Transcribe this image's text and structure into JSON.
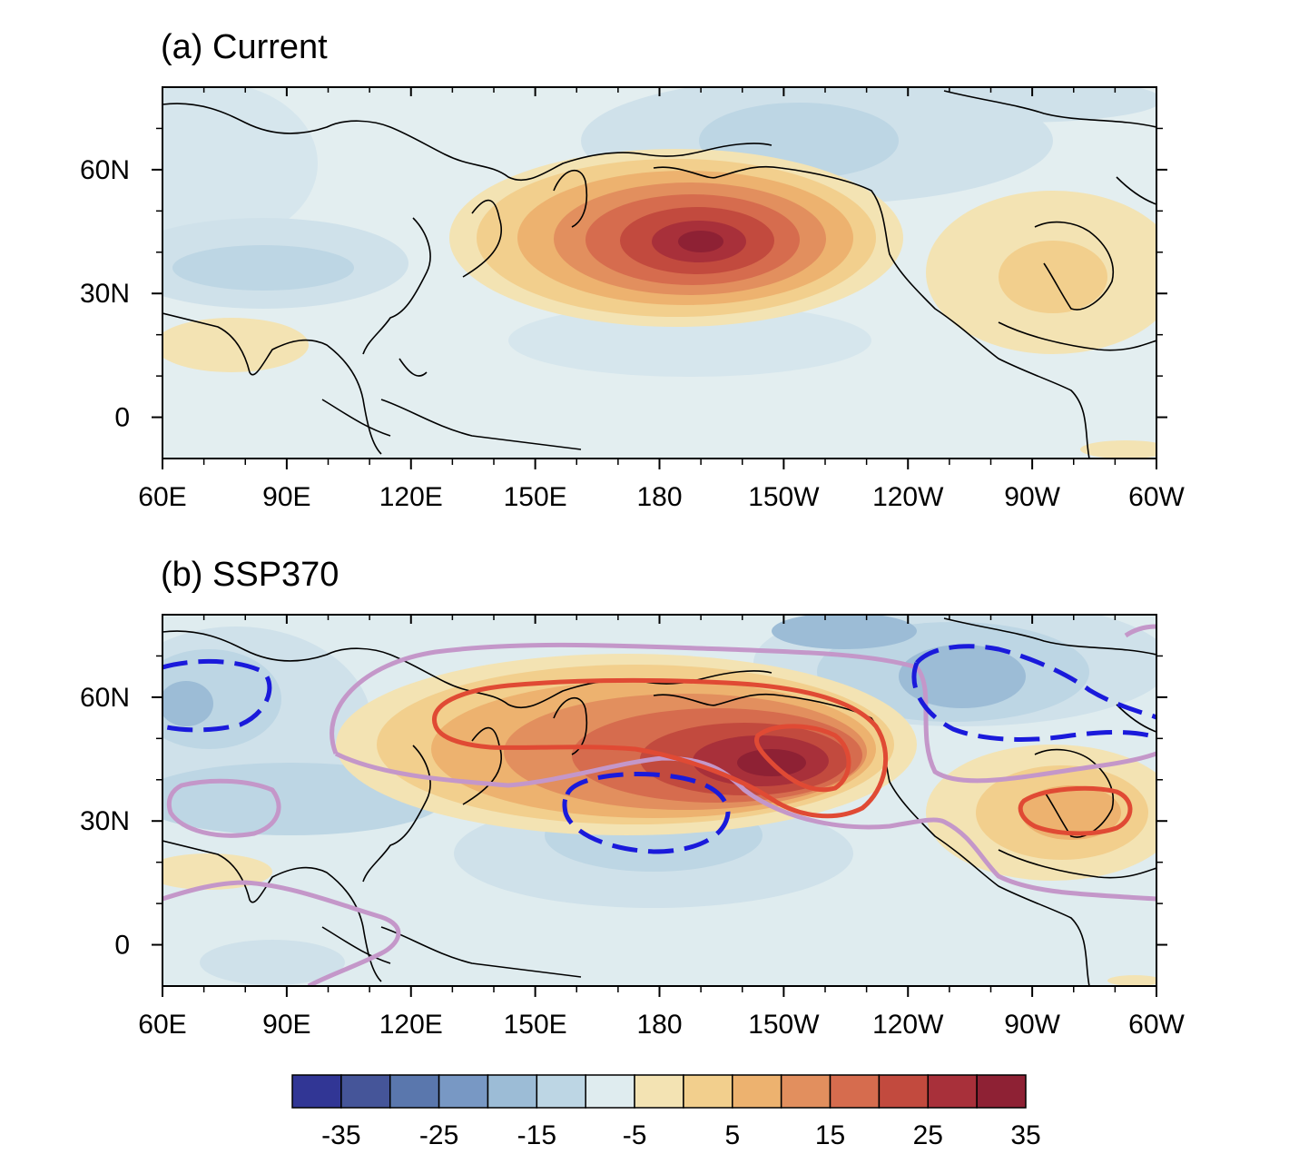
{
  "panels": [
    {
      "title": "(a) Current",
      "fill_centers": [
        {
          "name": "north-pacific-positive",
          "lon": 195,
          "lat": 42,
          "value": 35
        },
        {
          "name": "north-america-positive",
          "lon": 280,
          "lat": 35,
          "value": 7
        },
        {
          "name": "asia-negative",
          "lon": 85,
          "lat": 35,
          "value": -10
        },
        {
          "name": "canada-negative",
          "lon": 250,
          "lat": 65,
          "value": -8
        },
        {
          "name": "subtropical-pacific-negative",
          "lon": 180,
          "lat": 20,
          "value": -5
        }
      ]
    },
    {
      "title": "(b) SSP370",
      "fill_centers": [
        {
          "name": "north-pacific-positive",
          "lon": 200,
          "lat": 45,
          "value": 38
        },
        {
          "name": "north-america-positive",
          "lon": 280,
          "lat": 32,
          "value": 12
        },
        {
          "name": "asia-negative",
          "lon": 68,
          "lat": 58,
          "value": -12
        },
        {
          "name": "canada-negative",
          "lon": 260,
          "lat": 65,
          "value": -12
        },
        {
          "name": "subtropical-pacific-negative",
          "lon": 178,
          "lat": 32,
          "value": -10
        }
      ],
      "contours": [
        {
          "name": "positive-contour",
          "color": "#e04a34",
          "style": "solid"
        },
        {
          "name": "negative-contour",
          "color": "#1a1adb",
          "style": "dashed"
        },
        {
          "name": "zero-contour",
          "color": "#c497c9",
          "style": "solid"
        }
      ]
    }
  ],
  "x_ticks": [
    "60E",
    "90E",
    "120E",
    "150E",
    "180",
    "150W",
    "120W",
    "90W",
    "60W"
  ],
  "y_ticks": [
    "60N",
    "30N",
    "0"
  ],
  "colorbar": {
    "labels": [
      "-35",
      "-25",
      "-15",
      "-5",
      "5",
      "15",
      "25",
      "35"
    ],
    "colors": [
      "#313695",
      "#455599",
      "#5a77ad",
      "#7898c4",
      "#9cbcd6",
      "#bdd6e4",
      "#dfecef",
      "#f3e3b3",
      "#f2cf8d",
      "#edb26f",
      "#e28f5e",
      "#d66c4e",
      "#c24a3e",
      "#a8303a",
      "#8e2134"
    ]
  }
}
